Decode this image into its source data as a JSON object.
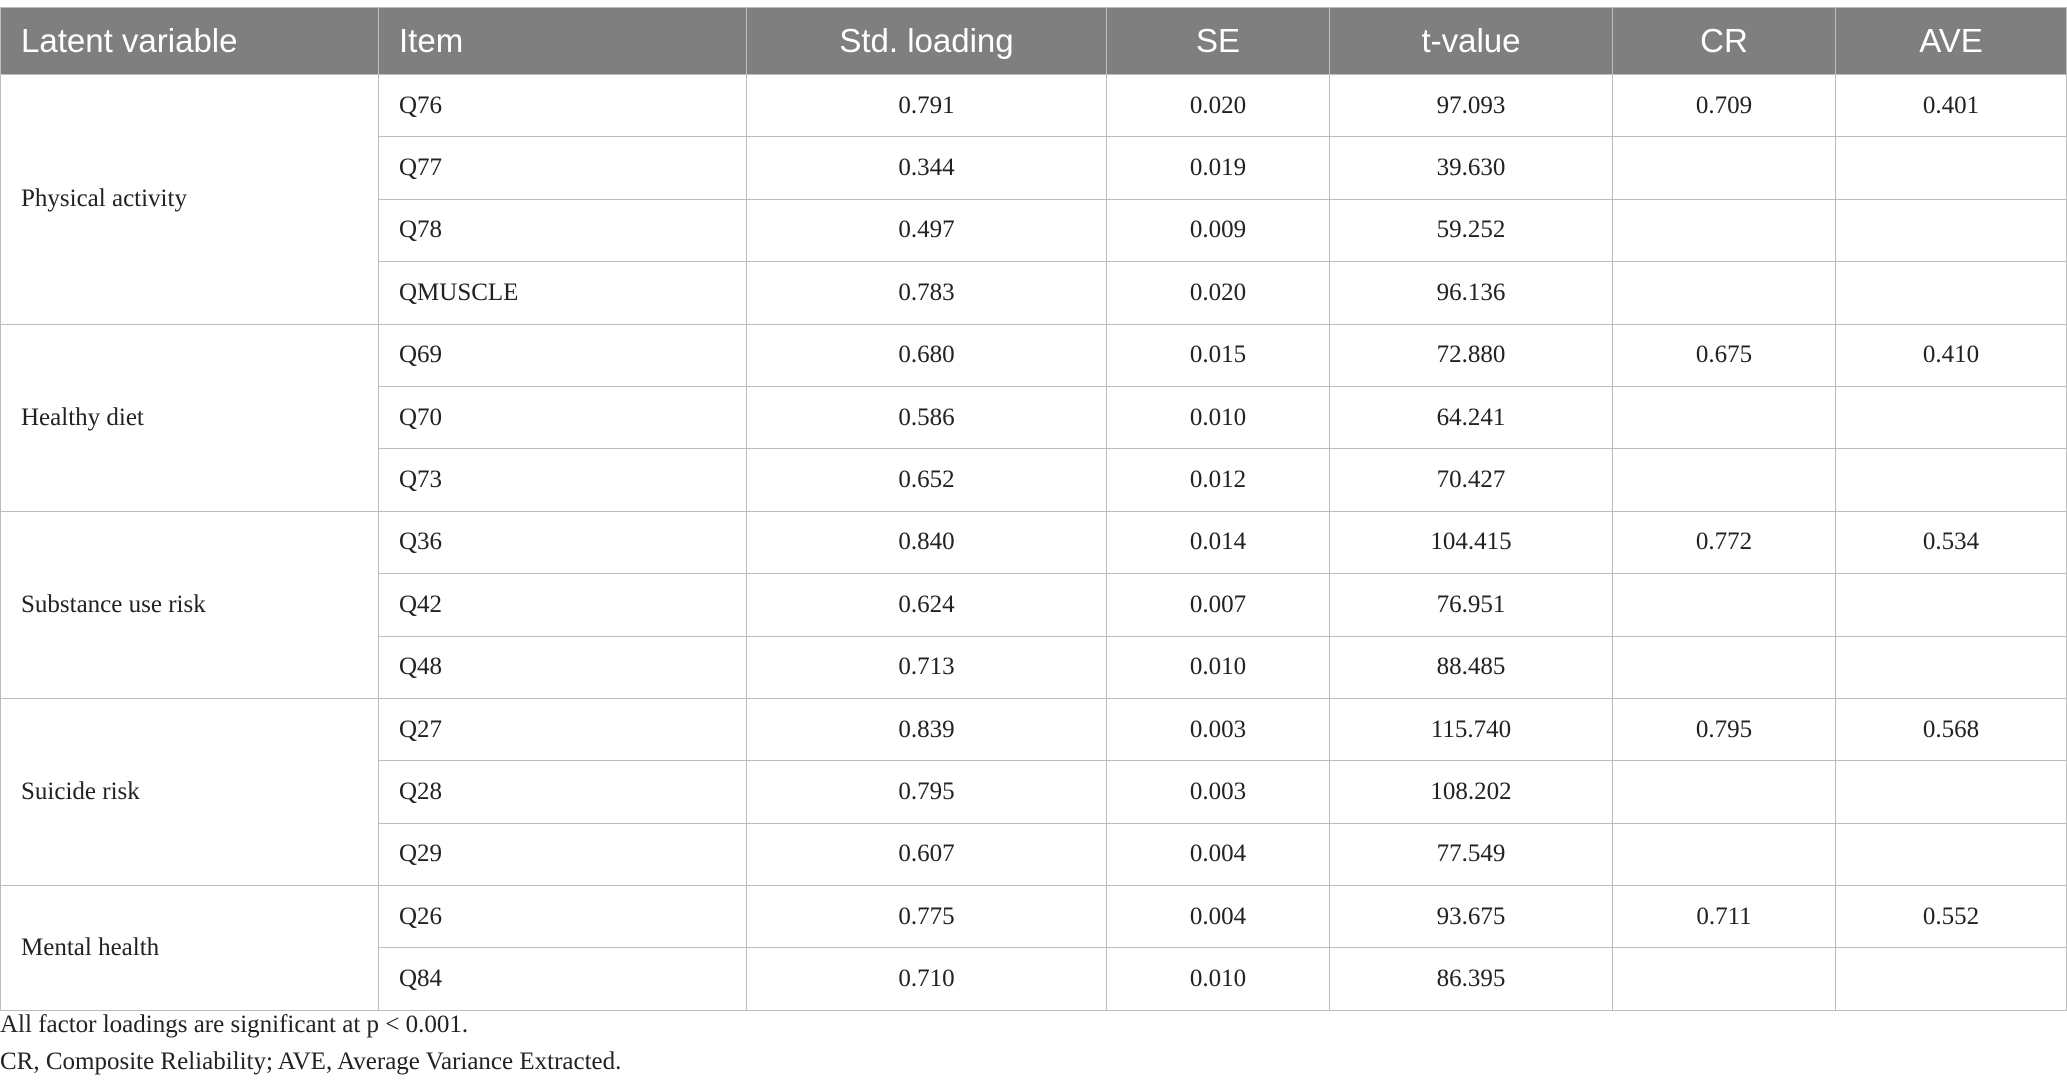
{
  "table": {
    "headers": [
      "Latent variable",
      "Item",
      "Std. loading",
      "SE",
      "t-value",
      "CR",
      "AVE"
    ],
    "groups": [
      {
        "label": "Physical activity",
        "cr": "0.709",
        "ave": "0.401",
        "rows": [
          [
            "Q76",
            "0.791",
            "0.020",
            "97.093"
          ],
          [
            "Q77",
            "0.344",
            "0.019",
            "39.630"
          ],
          [
            "Q78",
            "0.497",
            "0.009",
            "59.252"
          ],
          [
            "QMUSCLE",
            "0.783",
            "0.020",
            "96.136"
          ]
        ]
      },
      {
        "label": "Healthy diet",
        "cr": "0.675",
        "ave": "0.410",
        "rows": [
          [
            "Q69",
            "0.680",
            "0.015",
            "72.880"
          ],
          [
            "Q70",
            "0.586",
            "0.010",
            "64.241"
          ],
          [
            "Q73",
            "0.652",
            "0.012",
            "70.427"
          ]
        ]
      },
      {
        "label": "Substance use risk",
        "cr": "0.772",
        "ave": "0.534",
        "rows": [
          [
            "Q36",
            "0.840",
            "0.014",
            "104.415"
          ],
          [
            "Q42",
            "0.624",
            "0.007",
            "76.951"
          ],
          [
            "Q48",
            "0.713",
            "0.010",
            "88.485"
          ]
        ]
      },
      {
        "label": "Suicide risk",
        "cr": "0.795",
        "ave": "0.568",
        "rows": [
          [
            "Q27",
            "0.839",
            "0.003",
            "115.740"
          ],
          [
            "Q28",
            "0.795",
            "0.003",
            "108.202"
          ],
          [
            "Q29",
            "0.607",
            "0.004",
            "77.549"
          ]
        ]
      },
      {
        "label": "Mental health",
        "cr": "0.711",
        "ave": "0.552",
        "rows": [
          [
            "Q26",
            "0.775",
            "0.004",
            "93.675"
          ],
          [
            "Q84",
            "0.710",
            "0.010",
            "86.395"
          ]
        ]
      }
    ]
  },
  "footnotes": [
    "All factor loadings are significant at p < 0.001.",
    "CR, Composite Reliability; AVE, Average Variance Extracted."
  ]
}
